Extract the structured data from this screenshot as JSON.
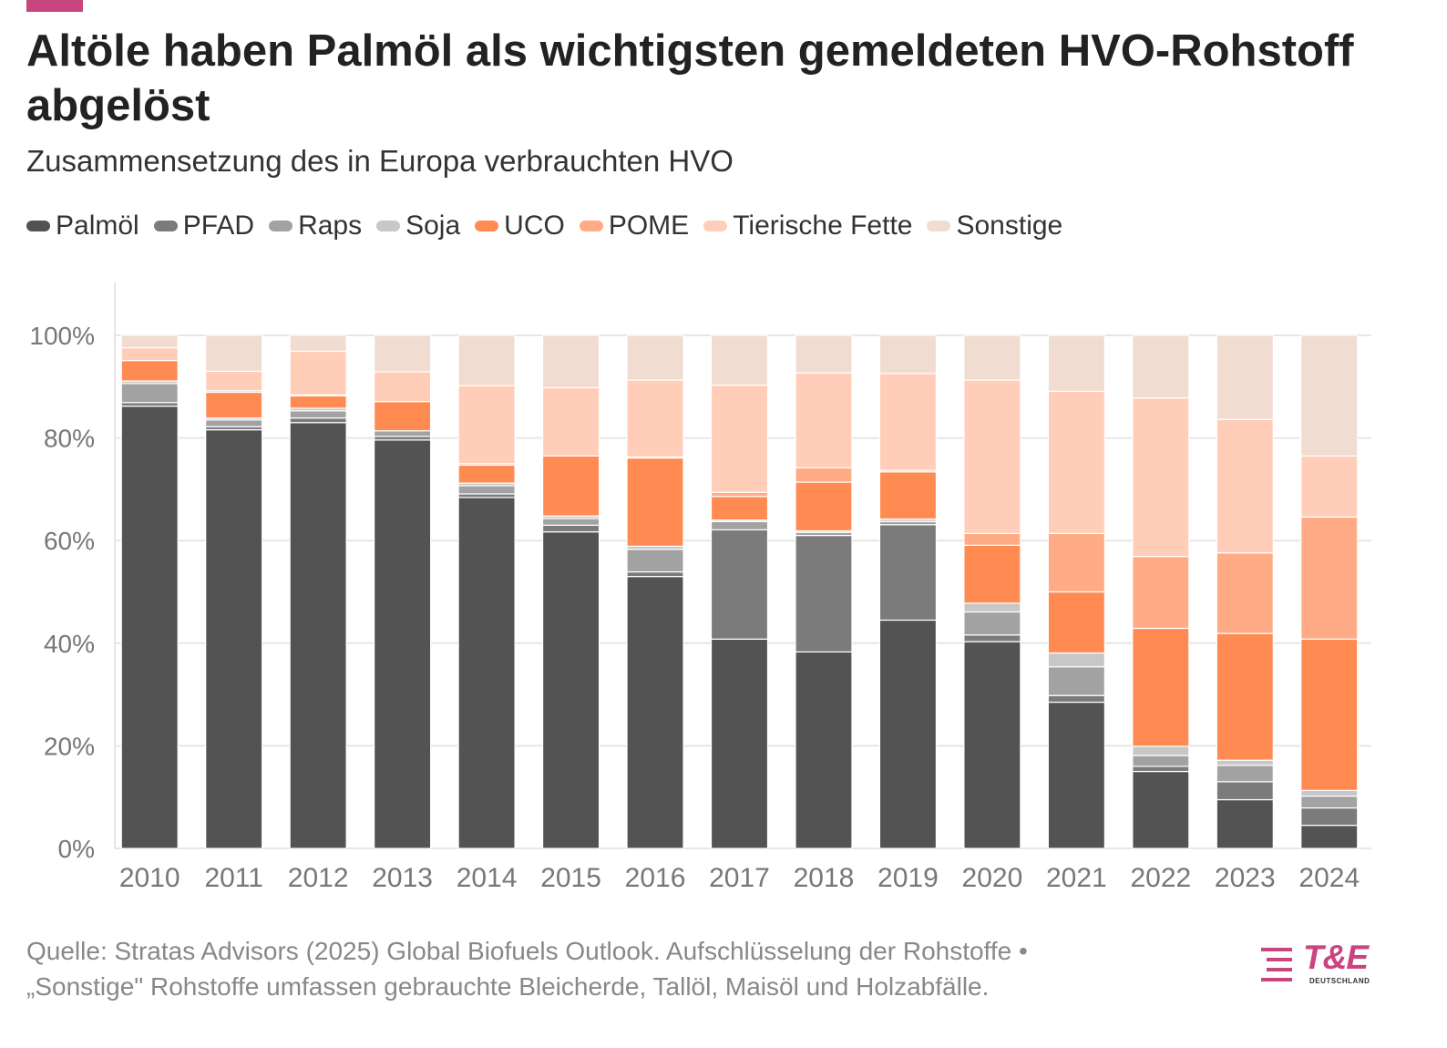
{
  "header": {
    "title": "Altöle haben Palmöl als wichtigsten gemeldeten HVO-Rohstoff abgelöst",
    "subtitle": "Zusammensetzung des in Europa verbrauchten HVO"
  },
  "footer": {
    "source_line": "Quelle: Stratas Advisors (2025) Global Biofuels Outlook. Aufschlüsselung der Rohstoffe •",
    "note_line": "„Sonstige\" Rohstoffe umfassen gebrauchte Bleicherde, Tallöl, Maisöl und Holzabfälle."
  },
  "logo": {
    "text": "T&E",
    "sub": "DEUTSCHLAND"
  },
  "colors": {
    "accent": "#c8457f",
    "grid": "#e6e6e6",
    "tick": "#777777"
  },
  "chart_data": {
    "type": "bar",
    "stacked": true,
    "title": "Altöle haben Palmöl als wichtigsten gemeldeten HVO-Rohstoff abgelöst",
    "subtitle": "Zusammensetzung des in Europa verbrauchten HVO",
    "xlabel": "",
    "ylabel": "",
    "ylim": [
      0,
      100
    ],
    "yticks": [
      0,
      20,
      40,
      60,
      80,
      100
    ],
    "ytick_labels": [
      "0%",
      "20%",
      "40%",
      "60%",
      "80%",
      "100%"
    ],
    "grid": true,
    "legend_position": "top-left",
    "categories": [
      "2010",
      "2011",
      "2012",
      "2013",
      "2014",
      "2015",
      "2016",
      "2017",
      "2018",
      "2019",
      "2020",
      "2021",
      "2022",
      "2023",
      "2024"
    ],
    "series": [
      {
        "name": "Palmöl",
        "color": "#535353",
        "values": [
          86.2,
          81.6,
          83.0,
          79.6,
          68.4,
          61.7,
          53.0,
          40.8,
          38.3,
          44.5,
          40.3,
          28.5,
          15.0,
          9.5,
          4.5
        ]
      },
      {
        "name": "PFAD",
        "color": "#7b7b7b",
        "values": [
          0.7,
          0.6,
          0.9,
          0.7,
          0.7,
          1.3,
          0.9,
          21.3,
          22.7,
          18.6,
          1.3,
          1.3,
          1.0,
          3.5,
          3.4
        ]
      },
      {
        "name": "Raps",
        "color": "#a2a2a2",
        "values": [
          3.7,
          1.3,
          1.4,
          1.1,
          1.6,
          1.3,
          4.4,
          1.6,
          0.6,
          0.6,
          4.5,
          5.6,
          2.1,
          3.2,
          2.3
        ]
      },
      {
        "name": "Soja",
        "color": "#c7c7c7",
        "values": [
          0.5,
          0.4,
          0.5,
          0.0,
          0.5,
          0.5,
          0.6,
          0.3,
          0.3,
          0.5,
          1.7,
          2.7,
          1.8,
          1.0,
          1.1
        ]
      },
      {
        "name": "UCO",
        "color": "#ff8a52",
        "values": [
          4.0,
          5.0,
          2.4,
          5.7,
          3.5,
          11.7,
          17.2,
          4.6,
          9.5,
          9.2,
          11.3,
          11.9,
          23.0,
          24.7,
          29.5
        ]
      },
      {
        "name": "POME",
        "color": "#ffab85",
        "values": [
          0.0,
          0.3,
          0.2,
          0.0,
          0.3,
          0.0,
          0.2,
          0.8,
          2.8,
          0.3,
          2.3,
          11.4,
          14.0,
          15.7,
          23.8
        ]
      },
      {
        "name": "Tierische Fette",
        "color": "#ffcdb8",
        "values": [
          2.5,
          3.8,
          8.5,
          5.8,
          15.2,
          13.3,
          15.0,
          20.9,
          18.5,
          18.9,
          29.9,
          27.7,
          30.9,
          26.0,
          11.9
        ]
      },
      {
        "name": "Sonstige",
        "color": "#f0dcd0",
        "values": [
          2.4,
          7.0,
          3.1,
          7.1,
          9.8,
          10.2,
          8.7,
          9.7,
          7.3,
          7.4,
          8.7,
          10.9,
          12.2,
          16.4,
          23.5
        ]
      }
    ]
  }
}
